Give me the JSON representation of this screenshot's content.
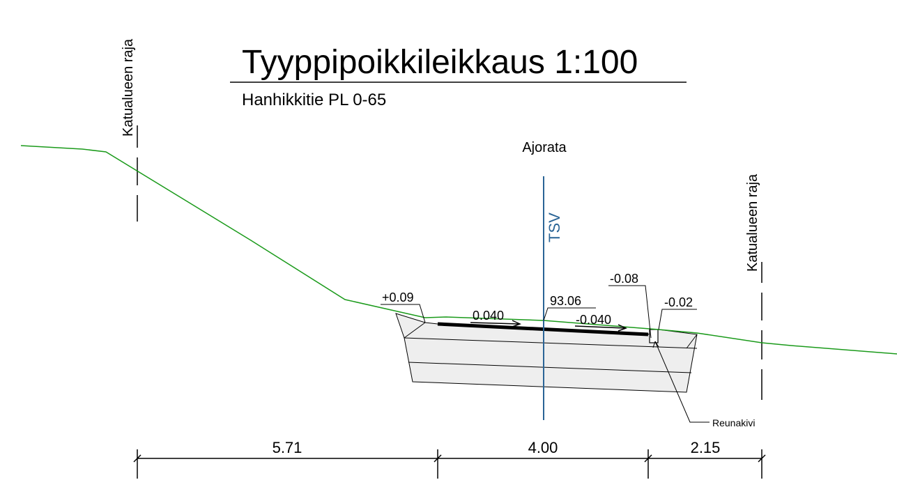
{
  "title": "Tyyppipoikkileikkaus 1:100",
  "subtitle": "Hanhikkitie PL 0-65",
  "boundaries": [
    {
      "label": "Katualueen raja"
    },
    {
      "label": "Katualueen raja"
    }
  ],
  "section_label": "Ajorata",
  "centerline_label": "TSV",
  "annotations": {
    "left_edge": "+0.09",
    "slope_left": "0.040",
    "center_height": "93.06",
    "slope_right": "-0.040",
    "curb_left": "-0.08",
    "curb_right": "-0.02",
    "curb_name": "Reunakivi"
  },
  "dimensions": [
    "5.71",
    "4.00",
    "2.15"
  ]
}
